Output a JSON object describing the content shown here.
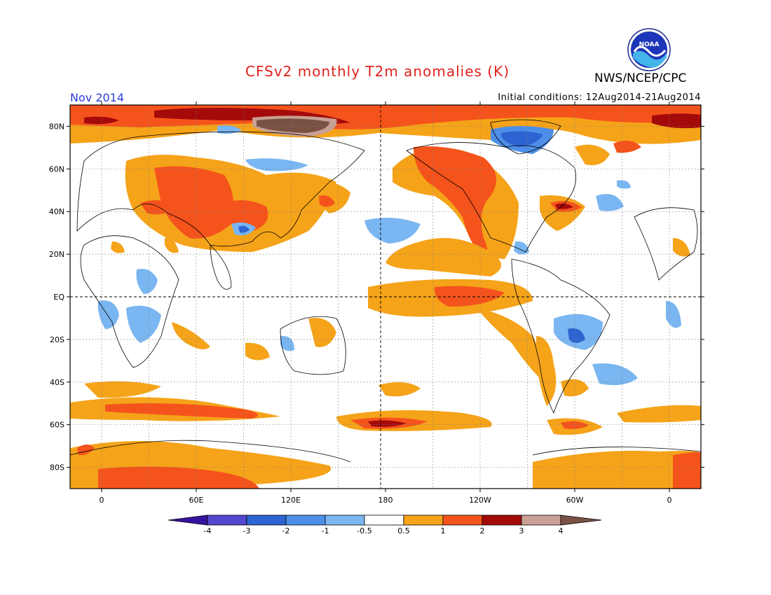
{
  "header": {
    "title": "CFSv2 monthly T2m anomalies (K)",
    "agency": "NWS/NCEP/CPC",
    "month": "Nov 2014",
    "initial_conditions": "Initial conditions: 12Aug2014-21Aug2014"
  },
  "logo": {
    "icon": "noaa-logo-icon",
    "text": "NOAA"
  },
  "map": {
    "lat_labels": [
      "80N",
      "60N",
      "40N",
      "20N",
      "EQ",
      "20S",
      "40S",
      "60S",
      "80S"
    ],
    "lat_values": [
      80,
      60,
      40,
      20,
      0,
      -20,
      -40,
      -60,
      -80
    ],
    "lon_labels": [
      "0",
      "60E",
      "120E",
      "180",
      "120W",
      "60W",
      "0"
    ],
    "lon_values": [
      0,
      60,
      120,
      180,
      240,
      300,
      360
    ],
    "lon_range": [
      -20,
      380
    ],
    "lat_range": [
      -90,
      90
    ]
  },
  "colorbar": {
    "labels": [
      "-4",
      "-3",
      "-2",
      "-1",
      "-0.5",
      "0.5",
      "1",
      "2",
      "3",
      "4"
    ],
    "colors": [
      "#3712a0",
      "#5347cf",
      "#2d64d2",
      "#4d8fe8",
      "#7ab6f1",
      "#ffffff",
      "#f5a319",
      "#f5531c",
      "#a50a0a",
      "#c9a094",
      "#7a5244"
    ]
  }
}
